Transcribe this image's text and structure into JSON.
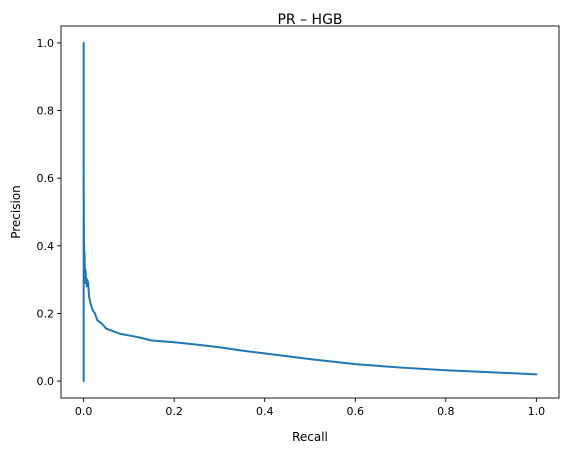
{
  "chart_data": {
    "type": "line",
    "title": "PR – HGB",
    "xlabel": "Recall",
    "ylabel": "Precision",
    "xlim": [
      -0.05,
      1.05
    ],
    "ylim": [
      -0.05,
      1.05
    ],
    "x_ticks": [
      0.0,
      0.2,
      0.4,
      0.6,
      0.8,
      1.0
    ],
    "x_tick_labels": [
      "0.0",
      "0.2",
      "0.4",
      "0.6",
      "0.8",
      "1.0"
    ],
    "y_ticks": [
      0.0,
      0.2,
      0.4,
      0.6,
      0.8,
      1.0
    ],
    "y_tick_labels": [
      "0.0",
      "0.2",
      "0.4",
      "0.6",
      "0.8",
      "1.0"
    ],
    "grid": false,
    "legend": "none",
    "series": [
      {
        "color": "#1f77b4",
        "x": [
          0.0,
          0.0,
          0.0,
          0.0,
          0.001,
          0.001,
          0.002,
          0.002,
          0.003,
          0.004,
          0.005,
          0.006,
          0.007,
          0.008,
          0.01,
          0.012,
          0.015,
          0.02,
          0.025,
          0.03,
          0.04,
          0.05,
          0.06,
          0.08,
          0.1,
          0.12,
          0.15,
          0.2,
          0.25,
          0.3,
          0.35,
          0.4,
          0.5,
          0.6,
          0.7,
          0.8,
          0.9,
          1.0
        ],
        "y": [
          0.0,
          1.0,
          0.0,
          0.66,
          0.3,
          0.41,
          0.3,
          0.38,
          0.29,
          0.33,
          0.31,
          0.3,
          0.28,
          0.3,
          0.29,
          0.25,
          0.23,
          0.21,
          0.2,
          0.18,
          0.17,
          0.155,
          0.15,
          0.14,
          0.135,
          0.13,
          0.12,
          0.115,
          0.108,
          0.1,
          0.09,
          0.082,
          0.065,
          0.05,
          0.04,
          0.032,
          0.026,
          0.02
        ]
      }
    ]
  }
}
